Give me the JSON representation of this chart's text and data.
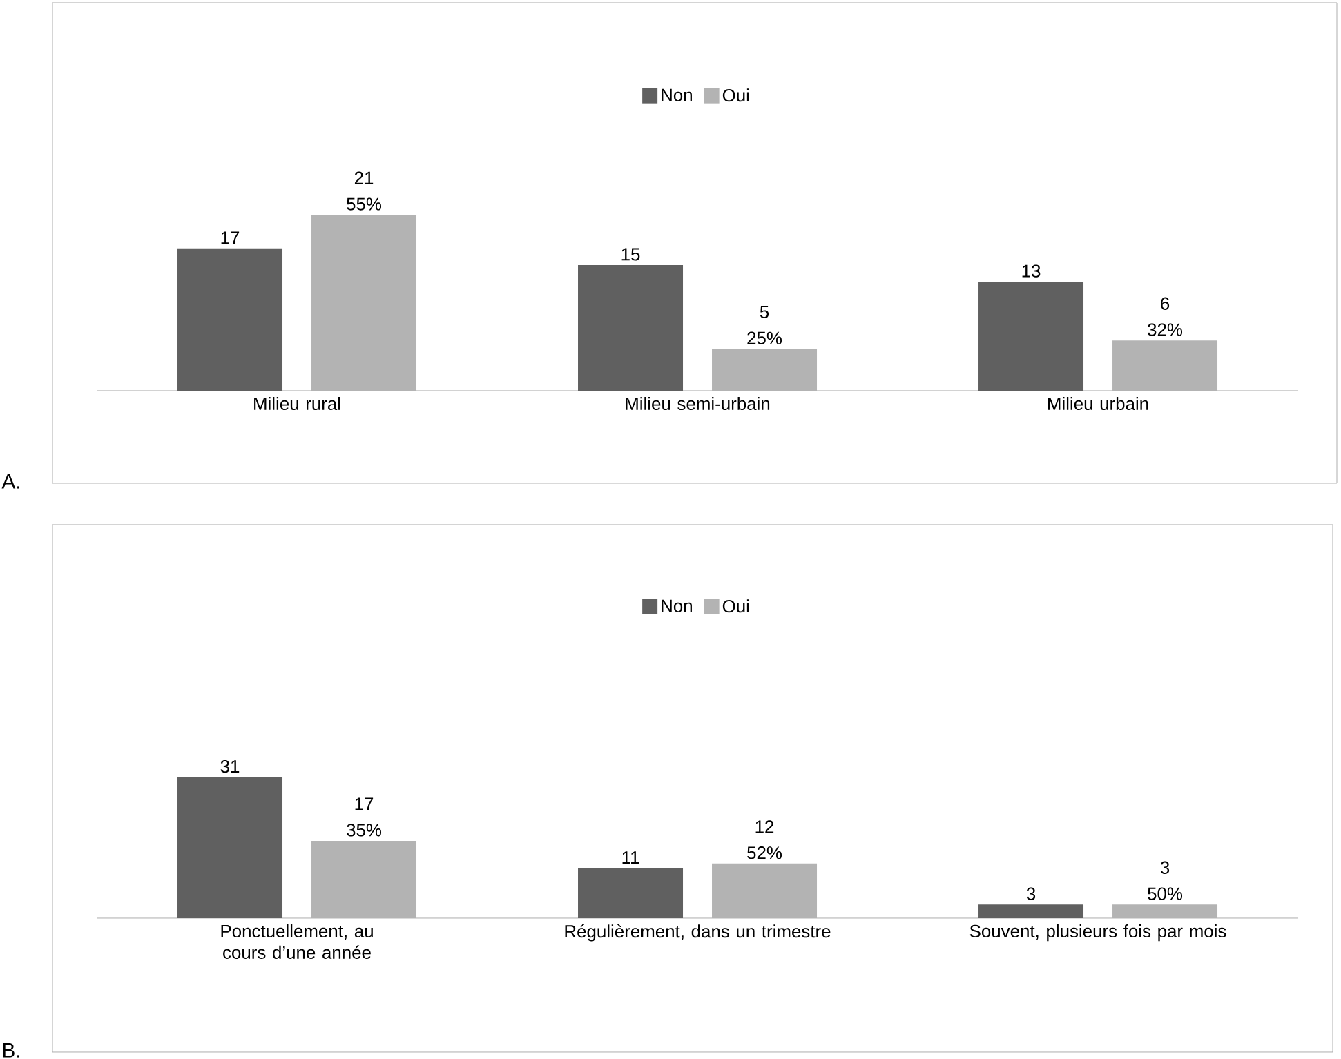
{
  "chart_data": [
    {
      "type": "bar",
      "categories": [
        "Milieu rural",
        "Milieu semi-urbain",
        "Milieu urbain"
      ],
      "series": [
        {
          "name": "Non",
          "color": "#606060",
          "values": [
            17,
            15,
            13
          ],
          "value_labels": [
            "17",
            "15",
            "13"
          ]
        },
        {
          "name": "Oui",
          "color": "#b3b3b3",
          "values": [
            21,
            5,
            6
          ],
          "value_labels": [
            "21 55%",
            "5 25%",
            "6 32%"
          ]
        }
      ],
      "legend": "top",
      "annotations": [
        "A."
      ]
    },
    {
      "type": "bar",
      "categories": [
        "Ponctuellement, au cours d’une année",
        "Régulièrement, dans un trimestre",
        "Souvent, plusieurs fois par mois"
      ],
      "series": [
        {
          "name": "Non",
          "color": "#606060",
          "values": [
            31,
            11,
            3
          ],
          "value_labels": [
            "31",
            "11",
            "3"
          ]
        },
        {
          "name": "Oui",
          "color": "#b3b3b3",
          "values": [
            17,
            12,
            3
          ],
          "value_labels": [
            "17 35%",
            "12 52%",
            "3 50%"
          ]
        }
      ],
      "legend": "top",
      "annotations": [
        "B."
      ]
    }
  ]
}
